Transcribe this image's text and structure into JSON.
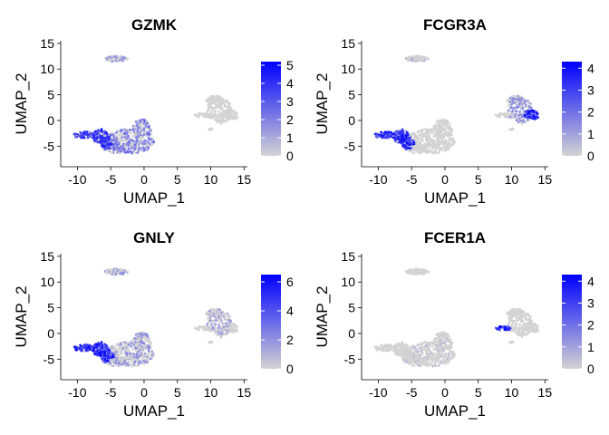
{
  "chart_data": [
    {
      "type": "scatter",
      "title": "GZMK",
      "xlabel": "UMAP_1",
      "ylabel": "UMAP_2",
      "xlim": [
        -12.5,
        15.5
      ],
      "ylim": [
        -9,
        15.5
      ],
      "xticks": [
        -10,
        -5,
        0,
        5,
        10,
        15
      ],
      "yticks": [
        -5,
        0,
        5,
        10,
        15
      ],
      "grid": false,
      "legend": {
        "position": "right",
        "type": "colorbar",
        "ticks": [
          0,
          1,
          2,
          3,
          4,
          5
        ],
        "min": 0,
        "max": 5.2
      },
      "color_low": "#d3d3d3",
      "color_high": "#0000ff",
      "highlight": [
        {
          "cluster": "nk_tcell",
          "level": 0.8
        },
        {
          "cluster": "tcell_main",
          "level": 0.45
        },
        {
          "cluster": "top_island",
          "level": 0.3
        }
      ]
    },
    {
      "type": "scatter",
      "title": "FCGR3A",
      "xlabel": "UMAP_1",
      "ylabel": "UMAP_2",
      "xlim": [
        -12.5,
        15.5
      ],
      "ylim": [
        -9,
        15.5
      ],
      "xticks": [
        -10,
        -5,
        0,
        5,
        10,
        15
      ],
      "yticks": [
        -5,
        0,
        5,
        10,
        15
      ],
      "grid": false,
      "legend": {
        "position": "right",
        "type": "colorbar",
        "ticks": [
          0,
          1,
          2,
          3,
          4
        ],
        "min": 0,
        "max": 4.3
      },
      "color_low": "#d3d3d3",
      "color_high": "#0000ff",
      "highlight": [
        {
          "cluster": "nk_tcell",
          "level": 0.85
        },
        {
          "cluster": "mono_tail",
          "level": 0.9
        },
        {
          "cluster": "mono_main",
          "level": 0.35
        },
        {
          "cluster": "top_island",
          "level": 0.2
        }
      ]
    },
    {
      "type": "scatter",
      "title": "GNLY",
      "xlabel": "UMAP_1",
      "ylabel": "UMAP_2",
      "xlim": [
        -12.5,
        15.5
      ],
      "ylim": [
        -9,
        15.5
      ],
      "xticks": [
        -10,
        -5,
        0,
        5,
        10,
        15
      ],
      "yticks": [
        -5,
        0,
        5,
        10,
        15
      ],
      "grid": false,
      "legend": {
        "position": "right",
        "type": "colorbar",
        "ticks": [
          0,
          2,
          4,
          6
        ],
        "min": 0,
        "max": 6.5
      },
      "color_low": "#d3d3d3",
      "color_high": "#0000ff",
      "highlight": [
        {
          "cluster": "nk_tcell",
          "level": 0.9
        },
        {
          "cluster": "tcell_main",
          "level": 0.35
        },
        {
          "cluster": "top_island",
          "level": 0.35
        },
        {
          "cluster": "mono_main",
          "level": 0.25
        }
      ]
    },
    {
      "type": "scatter",
      "title": "FCER1A",
      "xlabel": "UMAP_1",
      "ylabel": "UMAP_2",
      "xlim": [
        -12.5,
        15.5
      ],
      "ylim": [
        -9,
        15.5
      ],
      "xticks": [
        -10,
        -5,
        0,
        5,
        10,
        15
      ],
      "yticks": [
        -5,
        0,
        5,
        10,
        15
      ],
      "grid": false,
      "legend": {
        "position": "right",
        "type": "colorbar",
        "ticks": [
          0,
          1,
          2,
          3,
          4
        ],
        "min": 0,
        "max": 4.3
      },
      "color_low": "#d3d3d3",
      "color_high": "#0000ff",
      "highlight": [
        {
          "cluster": "dc_streak",
          "level": 0.9
        },
        {
          "cluster": "tcell_main",
          "level": 0.1
        }
      ]
    }
  ]
}
